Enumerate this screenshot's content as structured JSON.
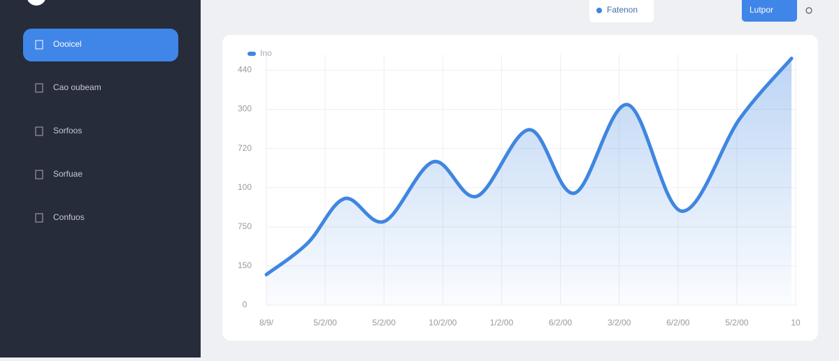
{
  "sidebar": {
    "items": [
      "Oooicel",
      "Cao oubeam",
      "Sorfoos",
      "Sorfuae",
      "Confuos"
    ]
  },
  "header": {
    "filter_button": "Fatenon",
    "export_button": "Lutpor"
  },
  "chart_data": {
    "type": "line",
    "xlim": [
      0,
      9
    ],
    "xticks": [
      {
        "value": 0,
        "label": "8/9/"
      },
      {
        "value": 1,
        "label": "5/2/00"
      },
      {
        "value": 2,
        "label": "5/2/00"
      },
      {
        "value": 3,
        "label": "10/2/00"
      },
      {
        "value": 4,
        "label": "1/2/00"
      },
      {
        "value": 5,
        "label": "6/2/00"
      },
      {
        "value": 6,
        "label": "3/2/00"
      },
      {
        "value": 7,
        "label": "6/2/00"
      },
      {
        "value": 8,
        "label": "5/2/00"
      },
      {
        "value": 9,
        "label": "10"
      }
    ],
    "ylim": [
      0,
      320
    ],
    "yticks": [
      0,
      {
        "value": 50,
        "label": "150"
      },
      {
        "value": 100,
        "label": "750"
      },
      {
        "value": 150,
        "label": "100"
      },
      {
        "value": 200,
        "label": "720"
      },
      {
        "value": 250,
        "label": "300"
      },
      {
        "value": 300,
        "label": "440"
      }
    ],
    "grid": true,
    "series": [
      {
        "name": "Ino",
        "color": "#3f86e0",
        "x": [
          0,
          0.7,
          1.33,
          2.01,
          2.84,
          3.58,
          4.47,
          5.24,
          6.14,
          7.06,
          8.05,
          8.93
        ],
        "values": [
          39,
          79,
          136,
          107,
          183,
          139,
          224,
          143,
          256,
          120,
          238,
          315
        ]
      }
    ]
  }
}
